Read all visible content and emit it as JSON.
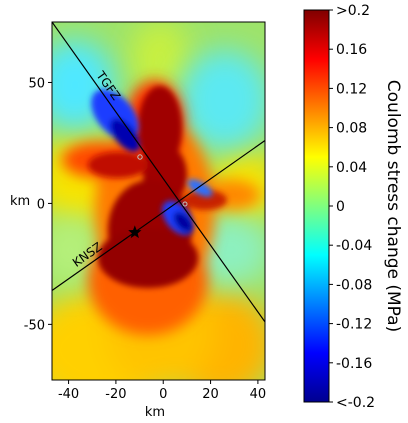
{
  "chart_data": {
    "type": "heatmap",
    "quantity": "Coulomb stress change",
    "units": "MPa",
    "xlabel": "km",
    "ylabel": "km",
    "xlim": [
      -47,
      43
    ],
    "ylim": [
      -73,
      75
    ],
    "xticks": [
      -40,
      -20,
      0,
      20,
      40
    ],
    "yticks": [
      50,
      0,
      -50
    ],
    "xtick_labels": [
      "-40",
      "-20",
      "0",
      "20",
      "40"
    ],
    "ytick_labels": [
      "50",
      "0",
      "-50"
    ],
    "colorbar": {
      "label": "Coulomb stress change (MPa)",
      "range": [
        -0.2,
        0.2
      ],
      "ticks": [
        0.2,
        0.16,
        0.12,
        0.08,
        0.04,
        0,
        -0.04,
        -0.08,
        -0.12,
        -0.16,
        -0.2
      ],
      "tick_labels": [
        ">0.2",
        "0.16",
        "0.12",
        "0.08",
        "0.04",
        "0",
        "-0.04",
        "-0.08",
        "-0.12",
        "-0.16",
        "<-0.2"
      ],
      "colormap": "jet"
    },
    "faults": [
      {
        "name": "TGFZ",
        "p1": [
          -47,
          75
        ],
        "p2": [
          43,
          -49
        ]
      },
      {
        "name": "KNSZ",
        "p1": [
          -47,
          -36
        ],
        "p2": [
          43,
          26
        ]
      }
    ],
    "epicenter": {
      "x": -12,
      "y": -12,
      "marker": "star"
    }
  },
  "colors": {
    "background_field": "#9ee36a",
    "positive_max": "#800000",
    "negative_min": "#00008f"
  }
}
